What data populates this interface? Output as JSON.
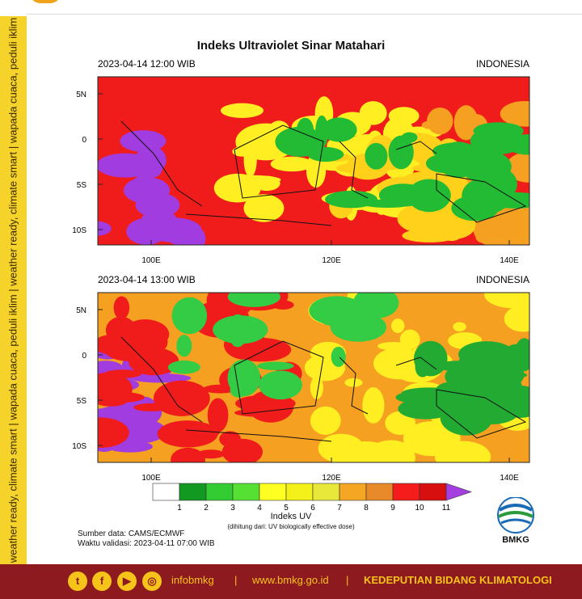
{
  "sidebar": "weather ready, climate smart | wapada cuaca, peduli iklim | weather ready, climate smart | wapada cuaca, peduli iklim",
  "title": "Indeks Ultraviolet Sinar Matahari",
  "panels": [
    {
      "time": "2023-04-14  12:00 WIB",
      "region": "INDONESIA",
      "lat_labels": [
        "5N",
        "0",
        "5S",
        "10S"
      ],
      "lon_labels": [
        "100E",
        "120E",
        "140E"
      ]
    },
    {
      "time": "2023-04-14  13:00 WIB",
      "region": "INDONESIA",
      "lat_labels": [
        "5N",
        "0",
        "5S",
        "10S"
      ],
      "lon_labels": [
        "100E",
        "120E",
        "140E"
      ]
    }
  ],
  "colorbar": {
    "labels": [
      "1",
      "2",
      "3",
      "4",
      "5",
      "6",
      "7",
      "8",
      "9",
      "10",
      "11"
    ],
    "title": "Indeks UV",
    "note": "(dihitung dari: UV biologically effective dose)"
  },
  "source": "Sumber data: CAMS/ECMWF",
  "validity": "Waktu validasi: 2023-04-11 07:00 WIB",
  "logo": "BMKG",
  "footer": {
    "handle": "infobmkg",
    "sep1": "|",
    "website": "www.bmkg.go.id",
    "sep2": "|",
    "office": "KEDEPUTIAN BIDANG KLIMATOLOGI"
  }
}
